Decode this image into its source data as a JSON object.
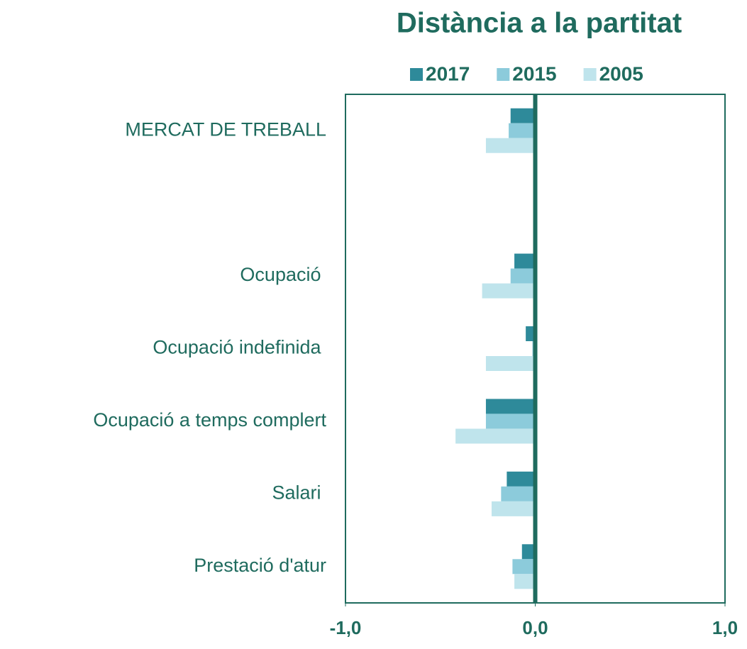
{
  "chart_data": {
    "type": "bar",
    "orientation": "horizontal",
    "title": "Distància a la partitat",
    "categories": [
      "MERCAT DE TREBALL",
      null,
      "Ocupació ",
      "Ocupació indefinida ",
      "Ocupació a temps complert",
      "Salari ",
      "Prestació d'atur"
    ],
    "series": [
      {
        "name": "2017",
        "color": "#2e8a9a",
        "values": [
          -0.13,
          null,
          -0.11,
          -0.05,
          -0.26,
          -0.15,
          -0.07
        ]
      },
      {
        "name": "2015",
        "color": "#8ccbdb",
        "values": [
          -0.14,
          null,
          -0.13,
          -0.015,
          -0.26,
          -0.18,
          -0.12
        ]
      },
      {
        "name": "2005",
        "color": "#bfe4ec",
        "values": [
          -0.26,
          null,
          -0.28,
          -0.26,
          -0.42,
          -0.23,
          -0.11
        ]
      }
    ],
    "xlim": [
      -1,
      1
    ],
    "xticks": [
      {
        "value": -1,
        "label": "-1,0"
      },
      {
        "value": 0,
        "label": "0,0"
      },
      {
        "value": 1,
        "label": "1,0"
      }
    ],
    "legend": "top"
  }
}
